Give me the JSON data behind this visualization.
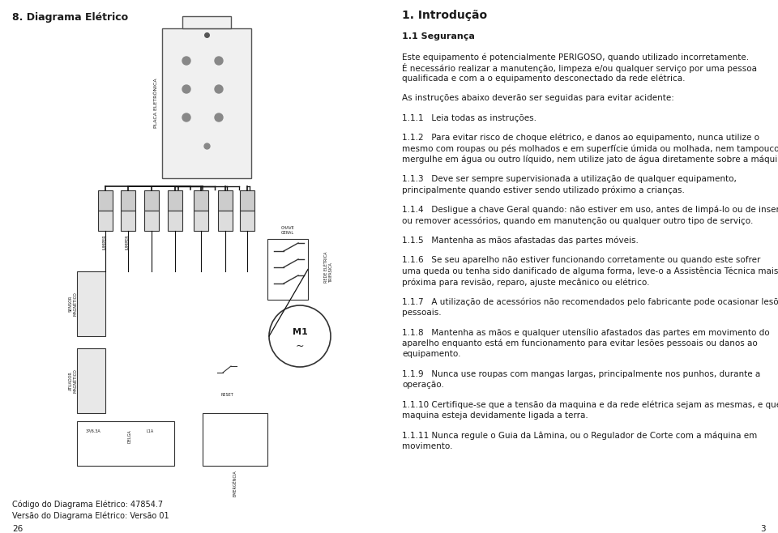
{
  "left_title": "8. Diagrama Elétrico",
  "right_title": "1. Introdução",
  "subtitle": "1.1 Segurança",
  "para1a": "Este equipamento é potencialmente PERIGOSO, quando utilizado incorretamente.",
  "para1b": "É necessário realizar a manutenção, limpeza e/ou qualquer serviço por uma pessoa",
  "para1c": "qualificada e com a o equipamento desconectado da rede elétrica.",
  "para2": "As instruções abaixo deverão ser seguidas para evitar acidente:",
  "para3": "1.1.1   Leia todas as instruções.",
  "para4a": "1.1.2   Para evitar risco de choque elétrico, e danos ao equipamento, nunca utilize o",
  "para4b": "mesmo com roupas ou pés molhados e em superfície úmida ou molhada, nem tampouco o",
  "para4c": "mergulhe em água ou outro líquido, nem utilize jato de água diretamente sobre a máquina.",
  "para5a": "1.1.3   Deve ser sempre supervisionada a utilização de qualquer equipamento,",
  "para5b": "principalmente quando estiver sendo utilizado próximo a crianças.",
  "para6a": "1.1.4   Desligue a chave Geral quando: não estiver em uso, antes de limpá-lo ou de inserir",
  "para6b": "ou remover acessórios, quando em manutenção ou qualquer outro tipo de serviço.",
  "para7": "1.1.5   Mantenha as mãos afastadas das partes móveis.",
  "para8a": "1.1.6   Se seu aparelho não estiver funcionando corretamente ou quando este sofrer",
  "para8b": "uma queda ou tenha sido danificado de alguma forma, leve-o a Assistência Técnica mais",
  "para8c": "próxima para revisão, reparo, ajuste mecânico ou elétrico.",
  "para9a": "1.1.7   A utilização de acessórios não recomendados pelo fabricante pode ocasionar lesões",
  "para9b": "pessoais.",
  "para10a": "1.1.8   Mantenha as mãos e qualquer utensílio afastados das partes em movimento do",
  "para10b": "aparelho enquanto está em funcionamento para evitar lesões pessoais ou danos ao",
  "para10c": "equipamento.",
  "para11a": "1.1.9   Nunca use roupas com mangas largas, principalmente nos punhos, durante a",
  "para11b": "operação.",
  "para12a": "1.1.10 Certifique-se que a tensão da maquina e da rede elétrica sejam as mesmas, e que a",
  "para12b": "maquina esteja devidamente ligada a terra.",
  "para13a": "1.1.11 Nunca regule o Guia da Lâmina, ou o Regulador de Corte com a máquina em",
  "para13b": "movimento.",
  "footer_line1": "Código do Diagrama Elétrico: 47854.7",
  "footer_line2": "Versão do Diagrama Elétrico: Versão 01",
  "footer_page": "26",
  "page_right": "3",
  "bg_color": "#ffffff",
  "text_color": "#1a1a1a"
}
